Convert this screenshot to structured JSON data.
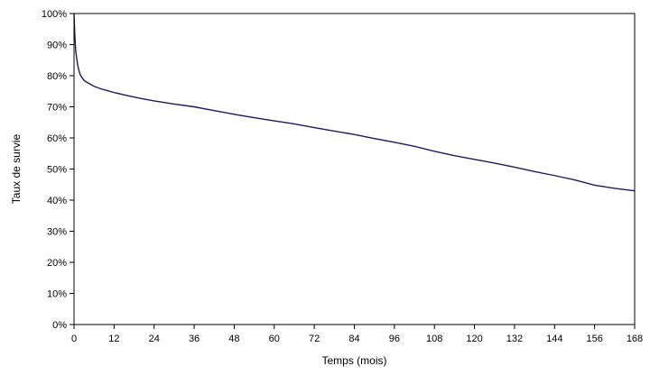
{
  "chart_data": {
    "type": "line",
    "title": "",
    "xlabel": "Temps (mois)",
    "ylabel": "Taux de survie",
    "xlim": [
      0,
      168
    ],
    "ylim": [
      0,
      100
    ],
    "x_ticks": [
      0,
      12,
      24,
      36,
      48,
      60,
      72,
      84,
      96,
      108,
      120,
      132,
      144,
      156,
      168
    ],
    "y_ticks": [
      0,
      10,
      20,
      30,
      40,
      50,
      60,
      70,
      80,
      90,
      100
    ],
    "y_tick_suffix": "%",
    "grid": false,
    "legend": "none",
    "line_color": "#1f1a5e",
    "series": [
      {
        "x": [
          0,
          0.2,
          0.5,
          1,
          1.5,
          2,
          3,
          4,
          5,
          6,
          8,
          10,
          12,
          16,
          20,
          24,
          30,
          36,
          42,
          48,
          54,
          60,
          66,
          72,
          78,
          84,
          90,
          96,
          102,
          108,
          114,
          120,
          126,
          132,
          138,
          144,
          150,
          156,
          162,
          168
        ],
        "y": [
          100,
          94,
          88,
          84,
          81.5,
          80,
          78.5,
          77.8,
          77.2,
          76.6,
          75.8,
          75.2,
          74.6,
          73.6,
          72.7,
          71.9,
          70.9,
          70,
          68.8,
          67.6,
          66.5,
          65.5,
          64.5,
          63.3,
          62.2,
          61.1,
          59.8,
          58.6,
          57.3,
          55.7,
          54.3,
          53.1,
          51.9,
          50.6,
          49.2,
          47.9,
          46.5,
          44.8,
          43.8,
          43
        ]
      }
    ]
  }
}
